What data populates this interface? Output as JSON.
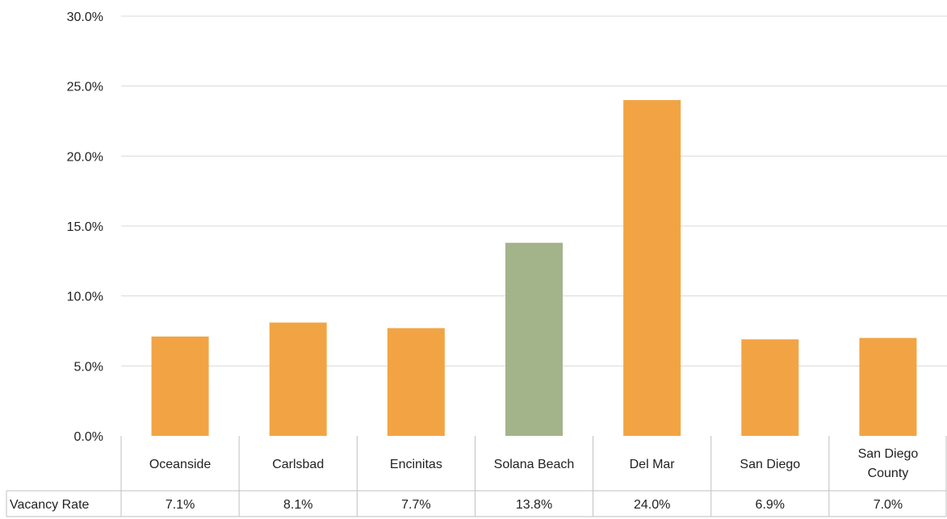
{
  "chart_data": {
    "type": "bar",
    "categories": [
      "Oceanside",
      "Carlsbad",
      "Encinitas",
      "Solana Beach",
      "Del Mar",
      "San Diego",
      "San Diego County"
    ],
    "series": [
      {
        "name": "Vacancy Rate",
        "values": [
          7.1,
          8.1,
          7.7,
          13.8,
          24.0,
          6.9,
          7.0
        ]
      }
    ],
    "value_labels": [
      "7.1%",
      "8.1%",
      "7.7%",
      "13.8%",
      "24.0%",
      "6.9%",
      "7.0%"
    ],
    "y_ticks": [
      "0.0%",
      "5.0%",
      "10.0%",
      "15.0%",
      "20.0%",
      "25.0%",
      "30.0%"
    ],
    "ylim": [
      0,
      30
    ],
    "grid": true,
    "data_table": true,
    "colors": {
      "default_bar": "#F2A444",
      "highlight_bar": "#A3B48B",
      "grid": "#D9D9D9",
      "table_border": "#BFBFBF"
    },
    "highlight_category": "Solana Beach"
  }
}
